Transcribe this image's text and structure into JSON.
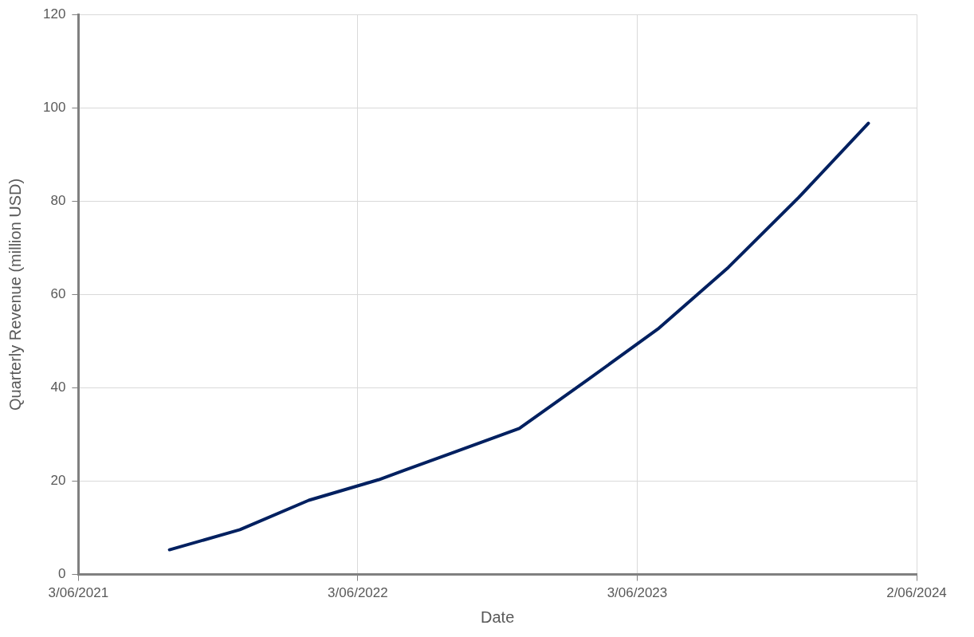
{
  "chart_data": {
    "type": "line",
    "xlabel": "Date",
    "ylabel": "Quarterly Revenue (million USD)",
    "x": [
      "2021-09-30",
      "2021-12-31",
      "2022-03-31",
      "2022-06-30",
      "2022-09-30",
      "2022-12-31",
      "2023-03-31",
      "2023-06-30",
      "2023-09-30",
      "2023-12-31",
      "2024-03-31"
    ],
    "series": [
      {
        "color": "#002060",
        "values": [
          5.3,
          9.6,
          15.9,
          20.3,
          25.8,
          31.3,
          41.8,
          52.6,
          65.8,
          80.8,
          96.7
        ]
      }
    ],
    "xlim": [
      "2021-06-03",
      "2024-06-02"
    ],
    "xticks": [
      {
        "value": "2021-06-03",
        "label": "3/06/2021"
      },
      {
        "value": "2022-06-03",
        "label": "3/06/2022"
      },
      {
        "value": "2023-06-03",
        "label": "3/06/2023"
      },
      {
        "value": "2024-06-02",
        "label": "2/06/2024"
      }
    ],
    "ylim": [
      0,
      120
    ],
    "yticks": [
      0,
      20,
      40,
      60,
      80,
      100,
      120
    ],
    "grid": true,
    "legend": false,
    "marker": "none",
    "line_style": "solid"
  }
}
